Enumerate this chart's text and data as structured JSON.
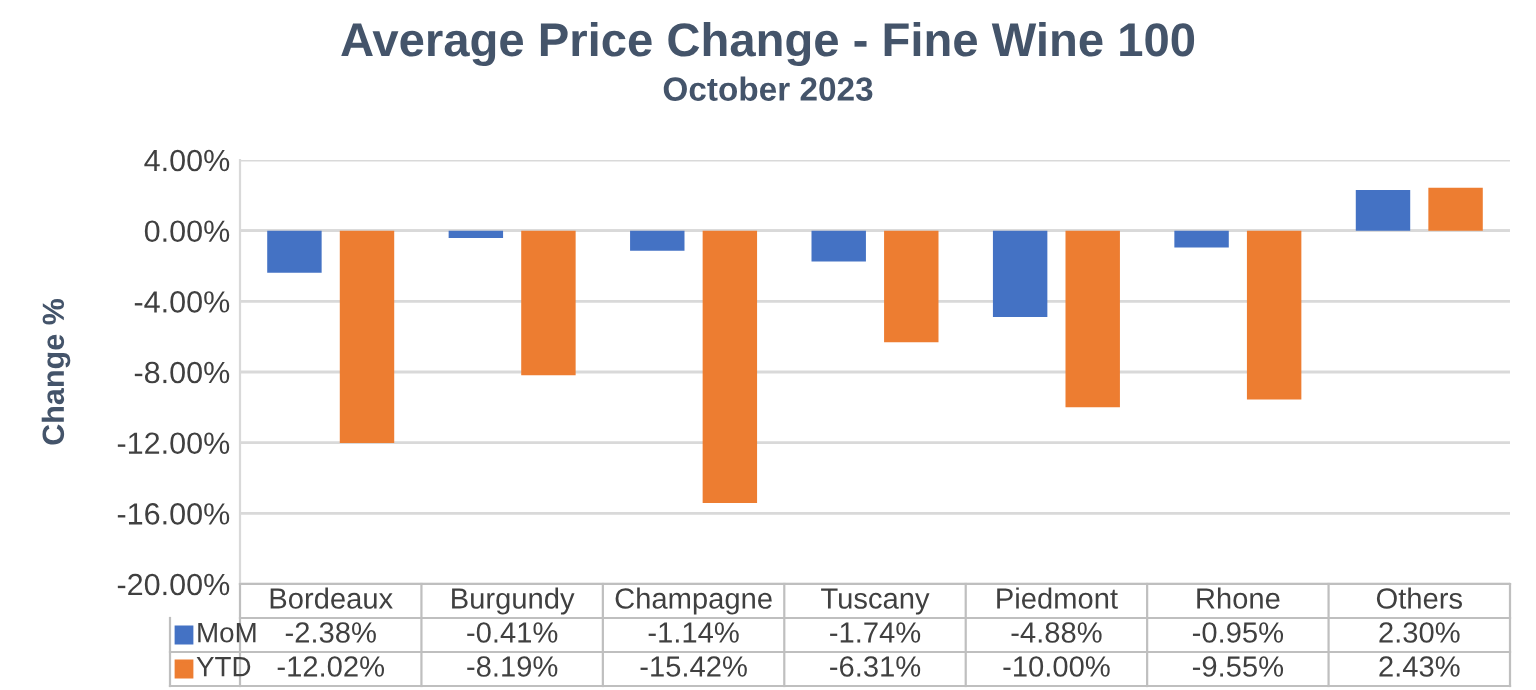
{
  "chart_data": {
    "type": "bar",
    "title": "Average Price Change - Fine Wine 100",
    "subtitle": "October 2023",
    "ylabel": "Change %",
    "categories": [
      "Bordeaux",
      "Burgundy",
      "Champagne",
      "Tuscany",
      "Piedmont",
      "Rhone",
      "Others"
    ],
    "series": [
      {
        "name": "MoM",
        "color": "#4472c4",
        "values": [
          -2.38,
          -0.41,
          -1.14,
          -1.74,
          -4.88,
          -0.95,
          2.3
        ],
        "value_labels": [
          "-2.38%",
          "-0.41%",
          "-1.14%",
          "-1.74%",
          "-4.88%",
          "-0.95%",
          "2.30%"
        ]
      },
      {
        "name": "YTD",
        "color": "#ed7d31",
        "values": [
          -12.02,
          -8.19,
          -15.42,
          -6.31,
          -10.0,
          -9.55,
          2.43
        ],
        "value_labels": [
          "-12.02%",
          "-8.19%",
          "-15.42%",
          "-6.31%",
          "-10.00%",
          "-9.55%",
          "2.43%"
        ]
      }
    ],
    "ylim": [
      -20,
      4
    ],
    "yticks": [
      {
        "value": -20,
        "label": "-20.00%"
      },
      {
        "value": -16,
        "label": "-16.00%"
      },
      {
        "value": -12,
        "label": "-12.00%"
      },
      {
        "value": -8,
        "label": "-8.00%"
      },
      {
        "value": -4,
        "label": "-4.00%"
      },
      {
        "value": 0,
        "label": "0.00%"
      },
      {
        "value": 4,
        "label": "4.00%"
      }
    ],
    "grid": "y",
    "legend": "bottom left"
  }
}
